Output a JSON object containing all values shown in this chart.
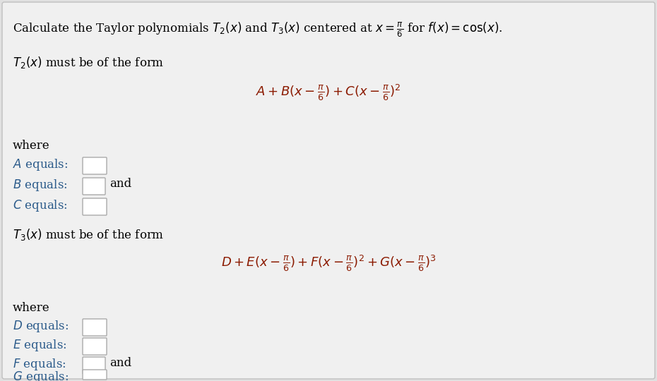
{
  "background_color": "#e0e0e0",
  "inner_bg_color": "#f0f0f0",
  "border_color": "#c0c0c0",
  "text_color": "#000000",
  "math_color": "#8b1a00",
  "label_color": "#2a5a8a",
  "figsize": [
    9.3,
    5.4
  ],
  "dpi": 100,
  "title": "Calculate the Taylor polynomials $T_2(x)$ and $T_3(x)$ centered at $x = \\frac{\\pi}{6}$ for $f(x) = \\cos(x)$.",
  "t2_form_label": "$T_2(x)$ must be of the form",
  "t2_formula": "$A + B(x - \\frac{\\pi}{6}) + C(x - \\frac{\\pi}{6})^2$",
  "t3_form_label": "$T_3(x)$ must be of the form",
  "t3_formula": "$D + E(x - \\frac{\\pi}{6}) + F(x - \\frac{\\pi}{6})^2 + G(x - \\frac{\\pi}{6})^3$",
  "where": "where",
  "A_label": "$A$ equals:",
  "B_label": "$B$ equals:",
  "C_label": "$C$ equals:",
  "D_label": "$D$ equals:",
  "E_label": "$E$ equals:",
  "F_label": "$F$ equals:",
  "G_label": "$G$ equals:",
  "and_text": "and",
  "box_edge_color": "#aaaaaa",
  "box_face_color": "#ffffff"
}
